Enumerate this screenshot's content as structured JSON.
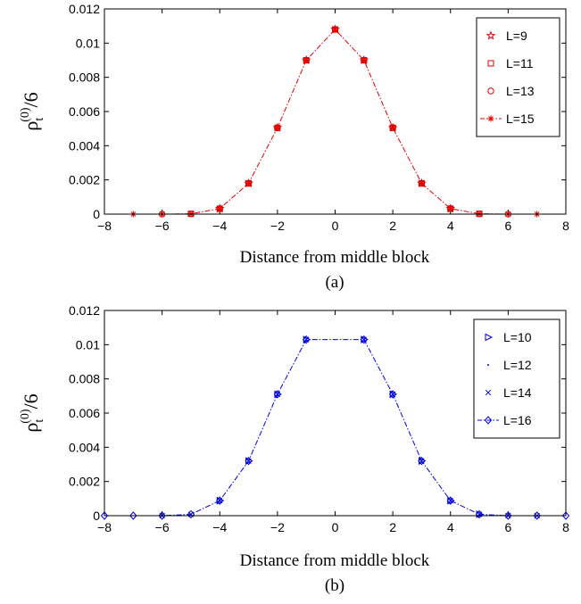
{
  "chart_data": [
    {
      "type": "line",
      "caption": "(a)",
      "xlabel": "Distance from middle block",
      "ylabel": {
        "main": "ρ",
        "sub": "t",
        "sup": "(0)",
        "suffix": "/6"
      },
      "xlim": [
        -8,
        8
      ],
      "ylim": [
        0,
        0.012
      ],
      "xticks": [
        "−8",
        "−6",
        "−4",
        "−2",
        "0",
        "2",
        "4",
        "6",
        "8"
      ],
      "yticks": [
        "0",
        "0.002",
        "0.004",
        "0.006",
        "0.008",
        "0.01",
        "0.012"
      ],
      "legend_position": "top-right",
      "color": "#e00000",
      "series": [
        {
          "name": "L=9",
          "marker": "star",
          "line": false,
          "x": [
            -4,
            -3,
            -2,
            -1,
            0,
            1,
            2,
            3,
            4
          ],
          "y": [
            0.00032,
            0.0018,
            0.00505,
            0.009,
            0.0108,
            0.009,
            0.00505,
            0.0018,
            0.00032
          ]
        },
        {
          "name": "L=11",
          "marker": "square",
          "line": false,
          "x": [
            -5,
            -4,
            -3,
            -2,
            -1,
            0,
            1,
            2,
            3,
            4,
            5
          ],
          "y": [
            2e-05,
            0.00032,
            0.0018,
            0.00505,
            0.009,
            0.0108,
            0.009,
            0.00505,
            0.0018,
            0.00032,
            2e-05
          ]
        },
        {
          "name": "L=13",
          "marker": "circle",
          "line": false,
          "x": [
            -6,
            -5,
            -4,
            -3,
            -2,
            -1,
            0,
            1,
            2,
            3,
            4,
            5,
            6
          ],
          "y": [
            0.0,
            2e-05,
            0.00032,
            0.0018,
            0.00505,
            0.009,
            0.0108,
            0.009,
            0.00505,
            0.0018,
            0.00032,
            2e-05,
            0.0
          ]
        },
        {
          "name": "L=15",
          "marker": "asterisk",
          "line": true,
          "x": [
            -7,
            -6,
            -5,
            -4,
            -3,
            -2,
            -1,
            0,
            1,
            2,
            3,
            4,
            5,
            6,
            7
          ],
          "y": [
            0.0,
            0.0,
            2e-05,
            0.00032,
            0.0018,
            0.00505,
            0.009,
            0.0108,
            0.009,
            0.00505,
            0.0018,
            0.00032,
            2e-05,
            0.0,
            0.0
          ]
        }
      ]
    },
    {
      "type": "line",
      "caption": "(b)",
      "xlabel": "Distance from middle block",
      "ylabel": {
        "main": "ρ",
        "sub": "t",
        "sup": "(0)",
        "suffix": "/6"
      },
      "xlim": [
        -8,
        8
      ],
      "ylim": [
        0,
        0.012
      ],
      "xticks": [
        "−8",
        "−6",
        "−4",
        "−2",
        "0",
        "2",
        "4",
        "6",
        "8"
      ],
      "yticks": [
        "0",
        "0.002",
        "0.004",
        "0.006",
        "0.008",
        "0.01",
        "0.012"
      ],
      "legend_position": "top-right",
      "color": "#0000e0",
      "series": [
        {
          "name": "L=10",
          "marker": "triangle-right",
          "line": false,
          "x": [
            -4,
            -3,
            -2,
            -1,
            1,
            2,
            3,
            4,
            5
          ],
          "y": [
            0.00088,
            0.0032,
            0.0071,
            0.0103,
            0.0103,
            0.0071,
            0.0032,
            0.00088,
            8e-05
          ]
        },
        {
          "name": "L=12",
          "marker": "point",
          "line": false,
          "x": [
            -5,
            -4,
            -3,
            -2,
            -1,
            1,
            2,
            3,
            4,
            5,
            6
          ],
          "y": [
            8e-05,
            0.00088,
            0.0032,
            0.0071,
            0.0103,
            0.0103,
            0.0071,
            0.0032,
            0.00088,
            8e-05,
            0.0
          ]
        },
        {
          "name": "L=14",
          "marker": "x",
          "line": false,
          "x": [
            -6,
            -5,
            -4,
            -3,
            -2,
            -1,
            1,
            2,
            3,
            4,
            5,
            6,
            7
          ],
          "y": [
            0.0,
            8e-05,
            0.00088,
            0.0032,
            0.0071,
            0.0103,
            0.0103,
            0.0071,
            0.0032,
            0.00088,
            8e-05,
            0.0,
            0.0
          ]
        },
        {
          "name": "L=16",
          "marker": "diamond",
          "line": true,
          "x": [
            -8,
            -7,
            -6,
            -5,
            -4,
            -3,
            -2,
            -1,
            1,
            2,
            3,
            4,
            5,
            6,
            7,
            8
          ],
          "y": [
            0.0,
            0.0,
            0.0,
            8e-05,
            0.00088,
            0.0032,
            0.0071,
            0.0103,
            0.0103,
            0.0071,
            0.0032,
            0.00088,
            8e-05,
            0.0,
            0.0,
            0.0
          ]
        }
      ]
    }
  ]
}
